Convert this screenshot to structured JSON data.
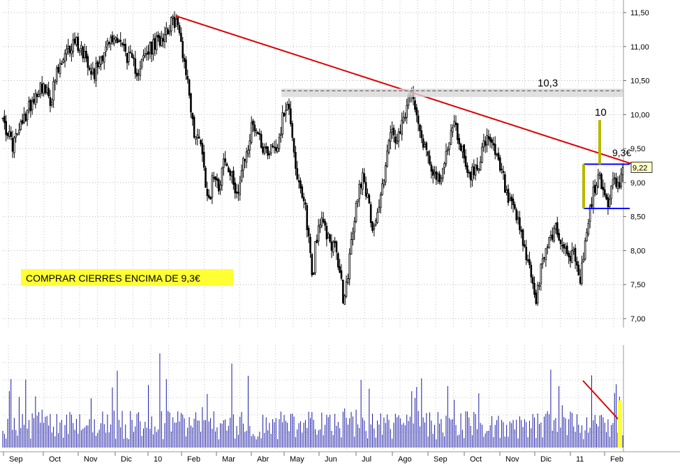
{
  "chart_data": [
    {
      "type": "candlestick",
      "panel": "price",
      "x_labels": [
        "Sep",
        "Oct",
        "Nov",
        "Dic",
        "10",
        "Feb",
        "Mar",
        "Abr",
        "May",
        "Jun",
        "Jul",
        "Ago",
        "Sep",
        "Oct",
        "Nov",
        "Dic",
        "11",
        "Feb"
      ],
      "y_ticks": [
        "11,50",
        "11,00",
        "10,50",
        "10,00",
        "9,50",
        "9,00",
        "8,50",
        "8,00",
        "7,50",
        "7,00"
      ],
      "ylim": [
        6.95,
        11.75
      ],
      "grid": true,
      "close_path": [
        [
          0,
          9.95
        ],
        [
          2,
          9.55
        ],
        [
          4,
          9.85
        ],
        [
          6,
          10.2
        ],
        [
          8,
          10.45
        ],
        [
          10,
          10.2
        ],
        [
          11,
          10.55
        ],
        [
          13,
          10.85
        ],
        [
          15,
          11.1
        ],
        [
          17,
          10.9
        ],
        [
          19,
          10.6
        ],
        [
          20,
          10.8
        ],
        [
          22,
          11.05
        ],
        [
          24,
          11.15
        ],
        [
          26,
          10.85
        ],
        [
          28,
          10.65
        ],
        [
          30,
          10.9
        ],
        [
          32,
          11.05
        ],
        [
          34,
          11.25
        ],
        [
          36,
          11.4
        ],
        [
          37,
          11.1
        ],
        [
          38,
          10.7
        ],
        [
          39,
          10.2
        ],
        [
          40,
          9.6
        ],
        [
          41,
          9.75
        ],
        [
          42,
          9.1
        ],
        [
          43,
          8.75
        ],
        [
          44,
          9.2
        ],
        [
          45,
          8.95
        ],
        [
          46,
          9.35
        ],
        [
          47,
          9.15
        ],
        [
          49,
          8.85
        ],
        [
          50,
          9.25
        ],
        [
          51,
          9.5
        ],
        [
          52,
          9.9
        ],
        [
          53,
          9.75
        ],
        [
          54,
          9.55
        ],
        [
          55,
          9.45
        ],
        [
          56,
          9.55
        ],
        [
          57,
          9.5
        ],
        [
          58,
          9.85
        ],
        [
          59,
          10.2
        ],
        [
          60,
          9.9
        ],
        [
          61,
          9.2
        ],
        [
          62,
          8.8
        ],
        [
          63,
          8.6
        ],
        [
          64,
          7.95
        ],
        [
          64.5,
          7.5
        ],
        [
          65,
          8.1
        ],
        [
          66,
          8.45
        ],
        [
          67,
          8.3
        ],
        [
          68,
          8.15
        ],
        [
          69,
          8.05
        ],
        [
          70,
          7.75
        ],
        [
          71,
          7.2
        ],
        [
          72,
          7.8
        ],
        [
          73,
          8.35
        ],
        [
          74,
          8.9
        ],
        [
          75,
          9.15
        ],
        [
          76,
          8.7
        ],
        [
          77,
          8.35
        ],
        [
          78,
          8.55
        ],
        [
          79,
          8.95
        ],
        [
          80,
          9.5
        ],
        [
          81,
          9.75
        ],
        [
          82,
          9.55
        ],
        [
          83,
          9.8
        ],
        [
          84,
          10.1
        ],
        [
          85,
          10.3
        ],
        [
          86,
          10.15
        ],
        [
          87,
          9.7
        ],
        [
          88,
          9.5
        ],
        [
          89,
          9.3
        ],
        [
          90,
          9.1
        ],
        [
          91,
          8.95
        ],
        [
          92,
          9.35
        ],
        [
          93,
          9.7
        ],
        [
          94,
          9.85
        ],
        [
          95,
          9.6
        ],
        [
          96,
          9.4
        ],
        [
          97,
          9.1
        ],
        [
          98,
          9.15
        ],
        [
          99,
          9.3
        ],
        [
          100,
          9.55
        ],
        [
          101,
          9.6
        ],
        [
          102,
          9.5
        ],
        [
          103,
          9.3
        ],
        [
          104,
          9.1
        ],
        [
          105,
          8.75
        ],
        [
          106,
          8.6
        ],
        [
          107,
          8.45
        ],
        [
          108,
          8.15
        ],
        [
          109,
          7.9
        ],
        [
          110,
          7.6
        ],
        [
          111,
          7.25
        ],
        [
          112,
          7.7
        ],
        [
          113,
          8.05
        ],
        [
          114,
          8.2
        ],
        [
          115,
          8.35
        ],
        [
          116,
          8.15
        ],
        [
          117,
          8.0
        ],
        [
          118,
          7.95
        ],
        [
          119,
          7.9
        ],
        [
          120,
          7.5
        ],
        [
          121,
          8.0
        ],
        [
          122,
          8.5
        ],
        [
          123,
          8.9
        ],
        [
          124,
          9.1
        ],
        [
          125,
          8.85
        ],
        [
          126,
          8.7
        ],
        [
          127,
          9.0
        ],
        [
          128,
          8.95
        ],
        [
          129,
          9.22
        ]
      ],
      "overlays": [
        {
          "kind": "trendline",
          "color": "#dd0000",
          "from": [
            36,
            11.45
          ],
          "to": [
            130,
            9.27
          ]
        },
        {
          "kind": "resistance-dashed",
          "color": "#777777",
          "y": 10.35,
          "x_from": 58,
          "x_to": 129,
          "label": "10,3"
        },
        {
          "kind": "range-top",
          "color": "#0000ff",
          "y": 9.27,
          "x_from": 120,
          "x_to": 130
        },
        {
          "kind": "range-bottom",
          "color": "#0000ff",
          "y": 8.62,
          "x_from": 120,
          "x_to": 130
        },
        {
          "kind": "measure-bar",
          "color": "#b8b800",
          "x": 121,
          "y_from": 8.62,
          "y_to": 9.27
        },
        {
          "kind": "projection-bar",
          "color": "#b8b800",
          "x": 124,
          "y_from": 9.27,
          "y_to": 9.92,
          "label": "10"
        },
        {
          "kind": "breakout-level",
          "color": "#000000",
          "label": "9,3€",
          "y": 9.45,
          "x": 127
        }
      ],
      "last_price_label": "9,22",
      "last_price": 9.22,
      "annotation": {
        "text": "COMPRAR CIERRES ENCIMA DE 9,3€",
        "background": "#ffff33"
      },
      "colors": {
        "candles": "#000000",
        "grid": "#b5b5b5"
      }
    },
    {
      "type": "bar",
      "panel": "volume",
      "color": "#1a1aa6",
      "overlays": [
        {
          "kind": "volume-trendline",
          "color": "#dd0000",
          "from": [
            120,
            0.7
          ],
          "to": [
            129,
            0.22
          ]
        },
        {
          "kind": "highlight-bar",
          "color": "#ffff33",
          "x": 129,
          "value": 0.46
        }
      ]
    }
  ]
}
